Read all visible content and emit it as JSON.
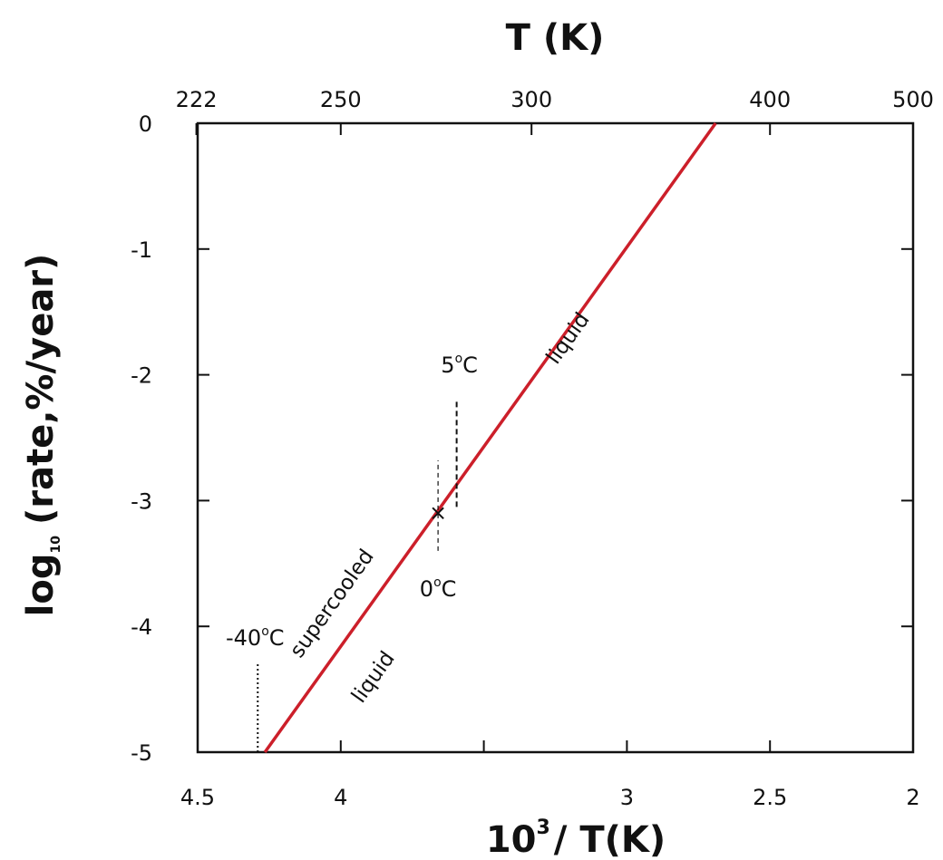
{
  "chart_data": {
    "type": "line",
    "x_axis_bottom": {
      "label_base": "10",
      "label_sup": "3",
      "label_rest": "/ T(K)",
      "range": [
        4.5,
        2.0
      ],
      "ticks": [
        4.5,
        4.0,
        3.5,
        3.0,
        2.5,
        2.0
      ],
      "tick_labels": [
        "4.5",
        "4",
        "",
        "3",
        "2.5",
        "2"
      ]
    },
    "x_axis_top": {
      "label": "T (K)",
      "ticks_kelvin": [
        222,
        250,
        300,
        400,
        500
      ],
      "tick_labels": [
        "222",
        "250",
        "300",
        "400",
        "500"
      ]
    },
    "y_axis": {
      "label_base": "log",
      "label_sub": "10",
      "label_rest": "(rate,%/year)",
      "range": [
        -5,
        0
      ],
      "ticks": [
        0,
        -1,
        -2,
        -3,
        -4,
        -5
      ],
      "tick_labels": [
        "0",
        "-1",
        "-2",
        "-3",
        "-4",
        "-5"
      ]
    },
    "grid": false,
    "series": [
      {
        "color": "#cc1f2a",
        "x": [
          4.265,
          2.69
        ],
        "y": [
          -5.0,
          0.0
        ]
      }
    ],
    "markers": [
      {
        "type": "x",
        "x": 3.66,
        "y": -3.1
      }
    ],
    "reference_lines": [
      {
        "x": 4.29,
        "y_from": -5.0,
        "y_to": -4.3,
        "style": "dotted",
        "label": "-40°C",
        "label_num": "-40",
        "label_deg": "o",
        "label_unit": "C"
      },
      {
        "x": 3.66,
        "y_from": -3.4,
        "y_to": -2.68,
        "style": "dashed-thin",
        "label": "0°C",
        "label_num": "0",
        "label_deg": "o",
        "label_unit": "C"
      },
      {
        "x": 3.595,
        "y_from": -3.05,
        "y_to": -2.2,
        "style": "dashed",
        "label": "5°C",
        "label_num": "5",
        "label_deg": "o",
        "label_unit": "C"
      }
    ],
    "line_annotations": [
      {
        "text": "supercooled",
        "x": 3.95,
        "y": -3.95
      },
      {
        "text": "liquid",
        "x": 3.95,
        "y": -4.3
      },
      {
        "text": "liquid",
        "x": 3.12,
        "y": -1.85
      }
    ]
  }
}
